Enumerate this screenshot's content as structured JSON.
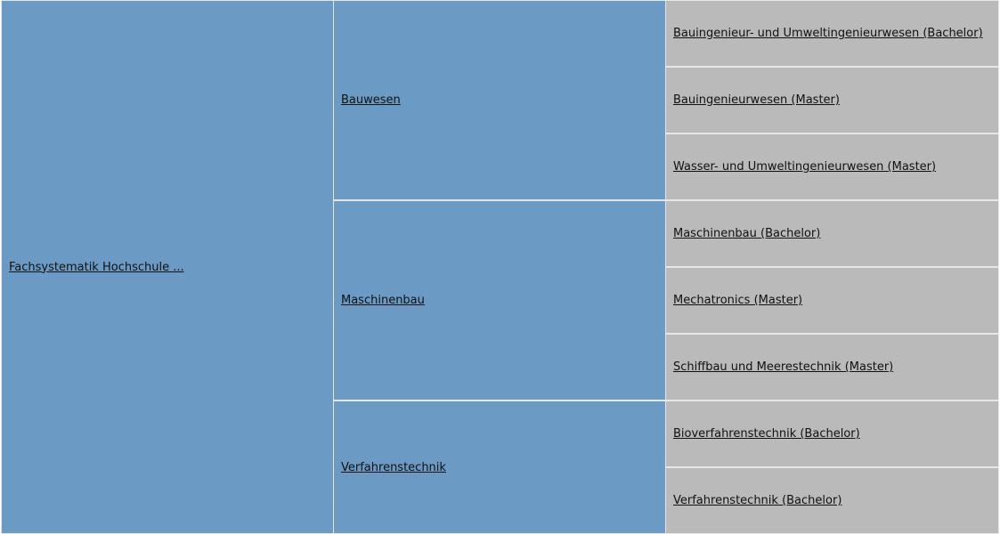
{
  "root": {
    "label": "Fachsystematik Hochschule ..."
  },
  "groups": [
    {
      "label": "Bauwesen",
      "programs": [
        "Bauingenieur- und Umweltingenieurwesen (Bachelor)",
        "Bauingenieurwesen (Master)",
        "Wasser- und Umweltingenieurwesen (Master)"
      ]
    },
    {
      "label": "Maschinenbau",
      "programs": [
        "Maschinenbau (Bachelor)",
        "Mechatronics (Master)",
        "Schiffbau und Meerestechnik (Master)"
      ]
    },
    {
      "label": "Verfahrenstechnik",
      "programs": [
        "Bioverfahrenstechnik (Bachelor)",
        "Verfahrenstechnik (Bachelor)"
      ]
    }
  ],
  "colors": {
    "level1": "#6b9bc5",
    "level2": "#6b9bc5",
    "level3": "#bababa",
    "border": "#e6e6e6"
  }
}
